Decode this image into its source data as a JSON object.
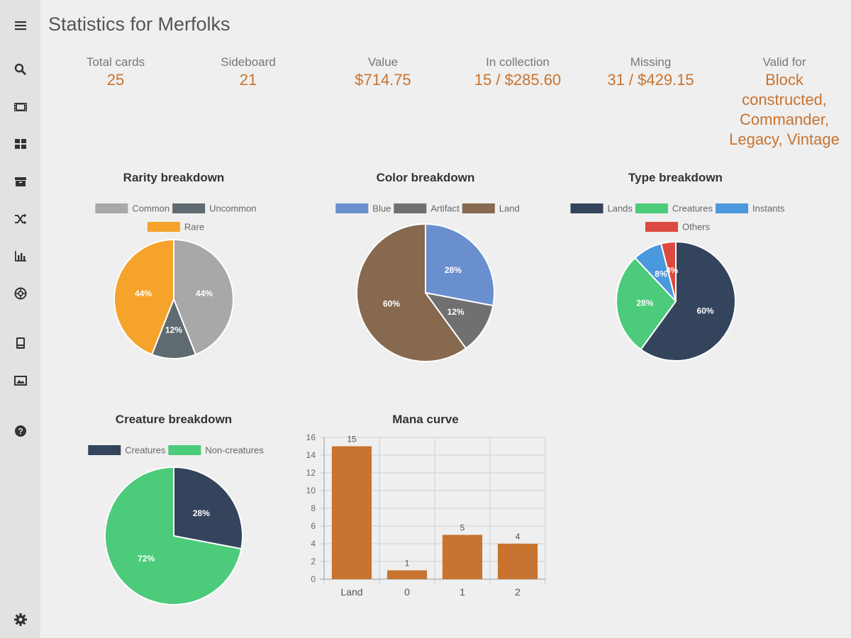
{
  "page": {
    "title": "Statistics for Merfolks"
  },
  "sidebar": {
    "icons": [
      "menu-icon",
      "search-icon",
      "film-icon",
      "grid-icon",
      "box-icon",
      "shuffle-icon",
      "bar-chart-icon",
      "aperture-icon",
      "book-icon",
      "image-icon",
      "help-icon",
      "gear-icon"
    ]
  },
  "stats": [
    {
      "label": "Total cards",
      "value": "25"
    },
    {
      "label": "Sideboard",
      "value": "21"
    },
    {
      "label": "Value",
      "value": "$714.75"
    },
    {
      "label": "In collection",
      "value": "15 / $285.60"
    },
    {
      "label": "Missing",
      "value": "31 / $429.15"
    },
    {
      "label": "Valid for",
      "value": "Block constructed, Commander, Legacy, Vintage"
    }
  ],
  "colors": {
    "accent": "#c8732f",
    "background": "#efefef",
    "sidebar": "#e2e2e2"
  },
  "chart_data": [
    {
      "type": "pie",
      "title": "Rarity breakdown",
      "legend": [
        "Common",
        "Uncommon",
        "Rare"
      ],
      "values": [
        44,
        12,
        44
      ],
      "labels": [
        "44%",
        "12%",
        "44%"
      ],
      "colors": [
        "#a8a8a8",
        "#5f6b70",
        "#f5a32b"
      ]
    },
    {
      "type": "pie",
      "title": "Color breakdown",
      "legend": [
        "Blue",
        "Artifact",
        "Land"
      ],
      "values": [
        28,
        12,
        60
      ],
      "labels": [
        "28%",
        "12%",
        "60%"
      ],
      "colors": [
        "#6a8fcf",
        "#707070",
        "#86694f"
      ]
    },
    {
      "type": "pie",
      "title": "Type breakdown",
      "legend": [
        "Lands",
        "Creatures",
        "Instants",
        "Others"
      ],
      "values": [
        60,
        28,
        8,
        4
      ],
      "labels": [
        "60%",
        "28%",
        "8%",
        "4%"
      ],
      "colors": [
        "#34445c",
        "#4ccb7a",
        "#4a98dd",
        "#dd4a3f"
      ]
    },
    {
      "type": "pie",
      "title": "Creature breakdown",
      "legend": [
        "Creatures",
        "Non-creatures"
      ],
      "values": [
        28,
        72
      ],
      "labels": [
        "28%",
        "72%"
      ],
      "colors": [
        "#34445c",
        "#4ccb7a"
      ]
    },
    {
      "type": "bar",
      "title": "Mana curve",
      "categories": [
        "Land",
        "0",
        "1",
        "2"
      ],
      "values": [
        15,
        1,
        5,
        4
      ],
      "value_labels": [
        "15",
        "1",
        "5",
        "4"
      ],
      "ylim": [
        0,
        16
      ],
      "yticks": [
        "0",
        "2",
        "4",
        "6",
        "8",
        "10",
        "12",
        "14",
        "16"
      ],
      "bar_color": "#c8732f"
    }
  ]
}
